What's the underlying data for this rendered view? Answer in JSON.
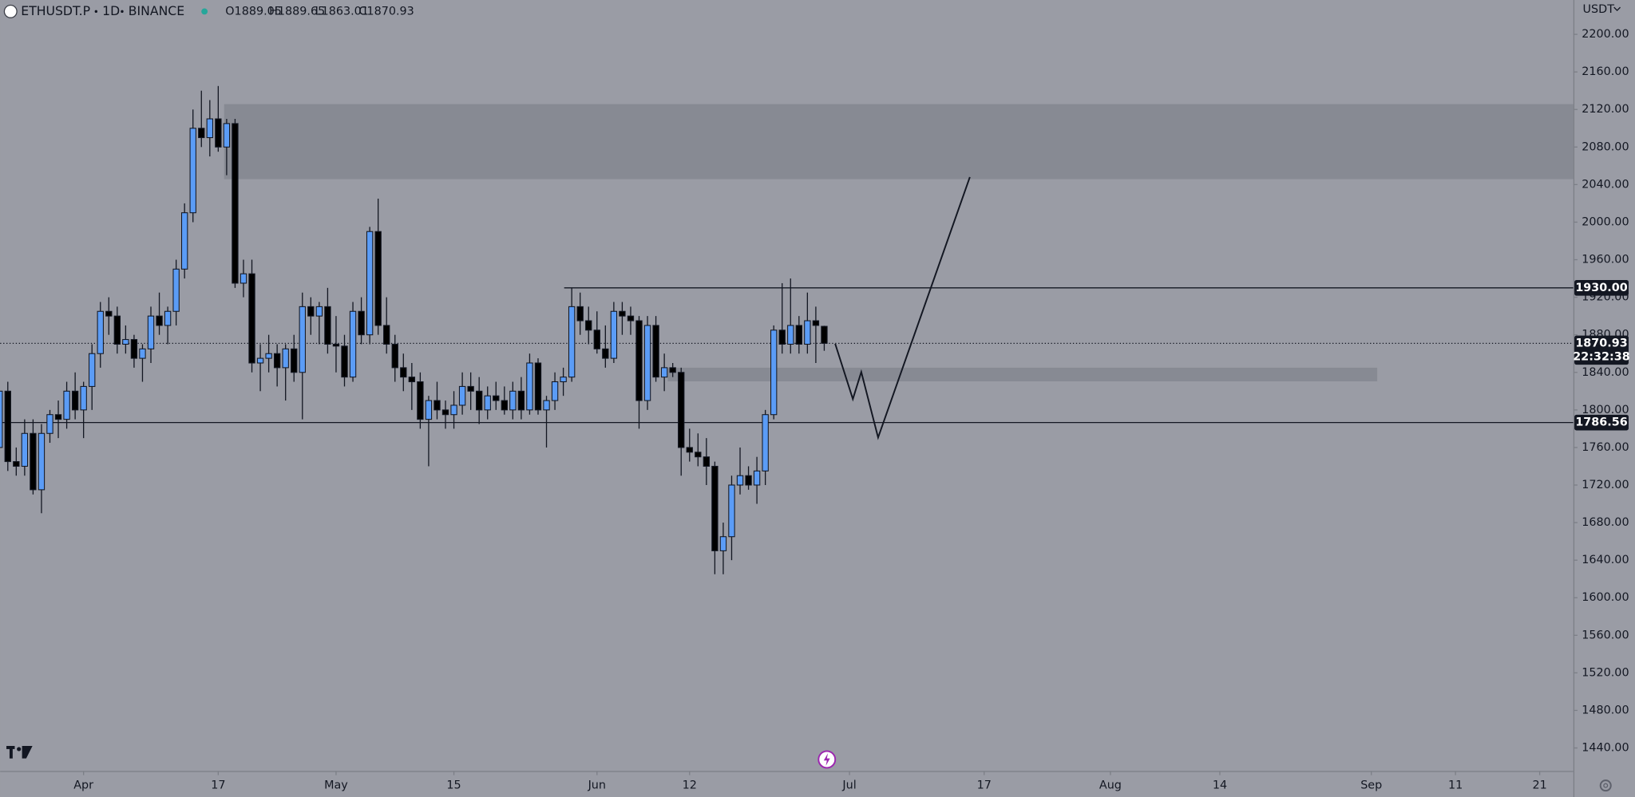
{
  "chart_data": {
    "type": "candlestick",
    "symbol": "ETHUSDT.P",
    "interval": "1D",
    "exchange": "BINANCE",
    "ohlc_labels": [
      "O1889.05",
      "H1889.65",
      "L1863.01",
      "C1870.93"
    ],
    "currency": "USDT",
    "countdown": "22:32:38",
    "up_color": "#5b9cf6",
    "down_color": "#000000",
    "x": [
      -10,
      -9,
      -8,
      -7,
      -6,
      -5,
      -4,
      -3,
      -2,
      -1,
      0,
      1,
      2,
      3,
      4,
      5,
      6,
      7,
      8,
      9,
      10,
      11,
      12,
      13,
      14,
      15,
      16,
      17,
      18,
      19,
      20,
      21,
      22,
      23,
      24,
      25,
      26,
      27,
      28,
      29,
      30,
      31,
      32,
      33,
      34,
      35,
      36,
      37,
      38,
      39,
      40,
      41,
      42,
      43,
      44,
      45,
      46,
      47,
      48,
      49,
      50,
      51,
      52,
      53,
      54,
      55,
      56,
      57,
      58,
      59,
      60,
      61,
      62,
      63,
      64,
      65,
      66,
      67,
      68,
      69,
      70,
      71,
      72,
      73,
      74,
      75,
      76,
      77,
      78,
      79,
      80,
      81,
      82,
      83,
      84,
      85,
      86,
      87,
      88
    ],
    "open": [
      1760,
      1820,
      1745,
      1740,
      1775,
      1715,
      1775,
      1795,
      1790,
      1820,
      1800,
      1825,
      1860,
      1905,
      1900,
      1870,
      1875,
      1855,
      1865,
      1900,
      1890,
      1905,
      1950,
      2010,
      2100,
      2090,
      2110,
      2080,
      2105,
      1935,
      1945,
      1850,
      1855,
      1860,
      1845,
      1865,
      1840,
      1910,
      1900,
      1910,
      1870,
      1868,
      1835,
      1905,
      1880,
      1990,
      1890,
      1870,
      1845,
      1835,
      1830,
      1790,
      1810,
      1800,
      1795,
      1805,
      1825,
      1820,
      1800,
      1815,
      1810,
      1800,
      1820,
      1800,
      1850,
      1800,
      1810,
      1830,
      1835,
      1910,
      1895,
      1885,
      1865,
      1855,
      1905,
      1900,
      1895,
      1810,
      1890,
      1835,
      1845,
      1840,
      1760,
      1755,
      1750,
      1740,
      1650,
      1665,
      1720,
      1730,
      1720,
      1735,
      1795,
      1885,
      1870,
      1890,
      1870,
      1895,
      1889.05
    ],
    "high": [
      1850,
      1830,
      1760,
      1790,
      1790,
      1785,
      1800,
      1810,
      1830,
      1840,
      1830,
      1870,
      1915,
      1920,
      1910,
      1890,
      1880,
      1870,
      1910,
      1925,
      1910,
      1960,
      2020,
      2120,
      2140,
      2130,
      2145,
      2110,
      2110,
      1960,
      1960,
      1870,
      1880,
      1870,
      1870,
      1880,
      1925,
      1920,
      1915,
      1930,
      1900,
      1880,
      1915,
      1920,
      1995,
      2025,
      1920,
      1880,
      1860,
      1850,
      1840,
      1815,
      1830,
      1810,
      1820,
      1840,
      1840,
      1835,
      1825,
      1830,
      1825,
      1830,
      1835,
      1860,
      1855,
      1815,
      1840,
      1845,
      1930,
      1925,
      1910,
      1905,
      1890,
      1915,
      1915,
      1910,
      1900,
      1900,
      1900,
      1860,
      1850,
      1845,
      1780,
      1775,
      1770,
      1745,
      1680,
      1730,
      1760,
      1740,
      1750,
      1800,
      1890,
      1935,
      1940,
      1900,
      1925,
      1910,
      1889.65
    ],
    "low": [
      1730,
      1735,
      1730,
      1730,
      1710,
      1690,
      1765,
      1770,
      1780,
      1790,
      1770,
      1800,
      1845,
      1880,
      1860,
      1860,
      1845,
      1830,
      1850,
      1880,
      1870,
      1890,
      1940,
      2000,
      2080,
      2070,
      2075,
      2050,
      1930,
      1920,
      1840,
      1820,
      1840,
      1825,
      1810,
      1830,
      1790,
      1880,
      1870,
      1860,
      1840,
      1825,
      1830,
      1870,
      1870,
      1880,
      1860,
      1830,
      1820,
      1800,
      1780,
      1740,
      1790,
      1780,
      1780,
      1795,
      1800,
      1785,
      1790,
      1800,
      1795,
      1790,
      1790,
      1795,
      1795,
      1760,
      1800,
      1815,
      1830,
      1880,
      1870,
      1860,
      1845,
      1850,
      1880,
      1880,
      1780,
      1800,
      1830,
      1820,
      1835,
      1730,
      1745,
      1740,
      1720,
      1625,
      1625,
      1640,
      1710,
      1715,
      1700,
      1720,
      1790,
      1860,
      1860,
      1860,
      1860,
      1850,
      1863.01
    ],
    "close": [
      1820,
      1745,
      1740,
      1775,
      1715,
      1775,
      1795,
      1790,
      1820,
      1800,
      1825,
      1860,
      1905,
      1900,
      1870,
      1875,
      1855,
      1865,
      1900,
      1890,
      1905,
      1950,
      2010,
      2100,
      2090,
      2110,
      2080,
      2105,
      1935,
      1945,
      1850,
      1855,
      1860,
      1845,
      1865,
      1840,
      1910,
      1900,
      1910,
      1870,
      1868,
      1835,
      1905,
      1880,
      1990,
      1890,
      1870,
      1845,
      1835,
      1830,
      1790,
      1810,
      1800,
      1795,
      1805,
      1825,
      1820,
      1800,
      1815,
      1810,
      1800,
      1820,
      1800,
      1850,
      1800,
      1810,
      1830,
      1835,
      1910,
      1895,
      1885,
      1865,
      1855,
      1905,
      1900,
      1895,
      1810,
      1890,
      1835,
      1845,
      1840,
      1760,
      1755,
      1750,
      1740,
      1650,
      1665,
      1720,
      1730,
      1720,
      1735,
      1795,
      1885,
      1870,
      1890,
      1870,
      1895,
      1890,
      1870.93
    ],
    "xlim": [
      -9.91,
      177.0
    ],
    "xticks": [
      {
        "value": 0,
        "label": "Apr"
      },
      {
        "value": 16,
        "label": "17"
      },
      {
        "value": 30,
        "label": "May"
      },
      {
        "value": 44,
        "label": "15"
      },
      {
        "value": 61,
        "label": "Jun"
      },
      {
        "value": 72,
        "label": "12"
      },
      {
        "value": 91,
        "label": "Jul"
      },
      {
        "value": 107,
        "label": "17"
      },
      {
        "value": 122,
        "label": "Aug"
      },
      {
        "value": 135,
        "label": "14"
      },
      {
        "value": 153,
        "label": "Sep"
      },
      {
        "value": 163,
        "label": "11"
      },
      {
        "value": 173,
        "label": "21"
      }
    ],
    "ylim": [
      1415.5,
      2236.6
    ],
    "yticks": [
      {
        "value": 1440,
        "label": "1440.00"
      },
      {
        "value": 1480,
        "label": "1480.00"
      },
      {
        "value": 1520,
        "label": "1520.00"
      },
      {
        "value": 1560,
        "label": "1560.00"
      },
      {
        "value": 1600,
        "label": "1600.00"
      },
      {
        "value": 1640,
        "label": "1640.00"
      },
      {
        "value": 1680,
        "label": "1680.00"
      },
      {
        "value": 1720,
        "label": "1720.00"
      },
      {
        "value": 1760,
        "label": "1760.00"
      },
      {
        "value": 1800,
        "label": "1800.00"
      },
      {
        "value": 1840,
        "label": "1840.00"
      },
      {
        "value": 1880,
        "label": "1880.00"
      },
      {
        "value": 1920,
        "label": "1920.00"
      },
      {
        "value": 1960,
        "label": "1960.00"
      },
      {
        "value": 2000,
        "label": "2000.00"
      },
      {
        "value": 2040,
        "label": "2040.00"
      },
      {
        "value": 2080,
        "label": "2080.00"
      },
      {
        "value": 2120,
        "label": "2120.00"
      },
      {
        "value": 2160,
        "label": "2160.00"
      },
      {
        "value": 2200,
        "label": "2200.00"
      }
    ],
    "grid": false,
    "zones": [
      {
        "x0": 16.7,
        "top": 2125.7,
        "bottom": 2045.8
      },
      {
        "x0": 69.4,
        "x1": 153.7,
        "top": 1845,
        "bottom": 1830.5
      }
    ],
    "lines": [
      {
        "value": 1930,
        "x0": 57.1,
        "label": "1930.00"
      },
      {
        "value": 1786.56,
        "label": "1786.56"
      }
    ],
    "last_price": {
      "value": 1870.93,
      "label": "1870.93"
    },
    "projection": {
      "x": [
        89.3,
        91.4,
        92.4,
        94.4,
        105.3
      ],
      "values": [
        1870.5,
        1811.6,
        1840.5,
        1770.6,
        2048
      ]
    }
  }
}
